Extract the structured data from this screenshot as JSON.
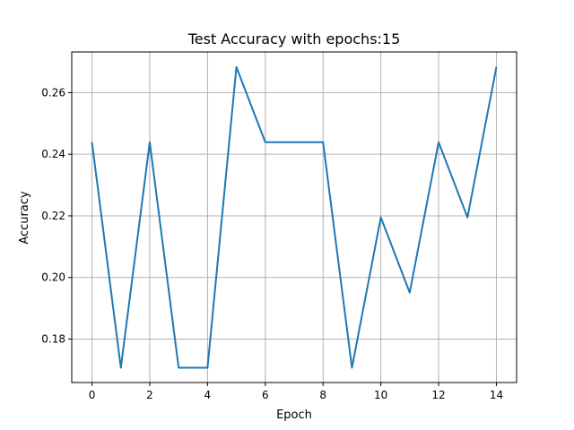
{
  "chart_data": {
    "type": "line",
    "title": "Test Accuracy with epochs:15",
    "xlabel": "Epoch",
    "ylabel": "Accuracy",
    "x": [
      0,
      1,
      2,
      3,
      4,
      5,
      6,
      7,
      8,
      9,
      10,
      11,
      12,
      13,
      14
    ],
    "series": [
      {
        "color": "#1f77b4",
        "values": [
          0.2439,
          0.1707,
          0.2439,
          0.1707,
          0.1707,
          0.2683,
          0.2439,
          0.2439,
          0.2439,
          0.1707,
          0.2195,
          0.1951,
          0.2439,
          0.2195,
          0.2683
        ]
      }
    ],
    "xlim": [
      -0.7,
      14.7
    ],
    "ylim": [
      0.1659,
      0.2732
    ],
    "xticks": [
      0,
      2,
      4,
      6,
      8,
      10,
      12,
      14
    ],
    "yticks": [
      0.18,
      0.2,
      0.22,
      0.24,
      0.26
    ],
    "xtick_labels": [
      "0",
      "2",
      "4",
      "6",
      "8",
      "10",
      "12",
      "14"
    ],
    "ytick_labels": [
      "0.18",
      "0.20",
      "0.22",
      "0.24",
      "0.26"
    ],
    "grid": true,
    "legend": false
  }
}
